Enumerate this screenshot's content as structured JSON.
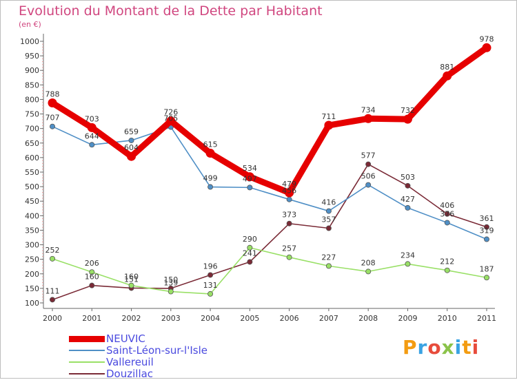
{
  "header": {
    "title": "Evolution du Montant de la Dette par Habitant",
    "unit": "(en €)"
  },
  "logo": {
    "letters": [
      "P",
      "r",
      "o",
      "x",
      "i",
      "t",
      "i"
    ],
    "colors": [
      "#f39c12",
      "#3aa3e3",
      "#e74c3c",
      "#8bc34a",
      "#3aa3e3",
      "#f39c12",
      "#e74c3c"
    ]
  },
  "chart_data": {
    "type": "line",
    "title": "Evolution du Montant de la Dette par Habitant",
    "ylabel": "(en €)",
    "xlabel": "",
    "categories": [
      "2000",
      "2001",
      "2002",
      "2003",
      "2004",
      "2005",
      "2006",
      "2007",
      "2008",
      "2009",
      "2010",
      "2011"
    ],
    "ylim": [
      100,
      1000
    ],
    "yticks": [
      100,
      150,
      200,
      250,
      300,
      350,
      400,
      450,
      500,
      550,
      600,
      650,
      700,
      750,
      800,
      850,
      900,
      950,
      1000
    ],
    "grid": false,
    "legend_position": "bottom-left",
    "series": [
      {
        "name": "NEUVIC",
        "color": "#e60000",
        "values": [
          788,
          703,
          604,
          726,
          615,
          534,
          479,
          711,
          734,
          732,
          881,
          978
        ]
      },
      {
        "name": "Saint-Léon-sur-l'Isle",
        "color": "#4f8fc6",
        "values": [
          707,
          644,
          659,
          705,
          499,
          497,
          456,
          416,
          506,
          427,
          376,
          319
        ]
      },
      {
        "name": "Vallereuil",
        "color": "#99e066",
        "values": [
          252,
          206,
          160,
          139,
          131,
          290,
          257,
          227,
          208,
          234,
          212,
          187
        ]
      },
      {
        "name": "Douzillac",
        "color": "#7a2a36",
        "values": [
          111,
          160,
          151,
          150,
          196,
          241,
          373,
          357,
          577,
          503,
          406,
          361
        ]
      }
    ]
  }
}
